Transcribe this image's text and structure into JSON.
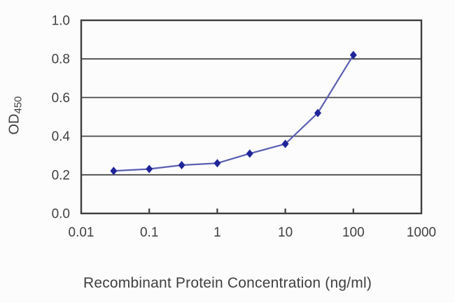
{
  "figure": {
    "background": "#fcfcfc"
  },
  "colors": {
    "axis": "#3e3e3e",
    "grid": "#4a4a4a",
    "text": "#3f3f3f"
  },
  "chart_data": {
    "type": "line",
    "title": "",
    "xlabel": "Recombinant Protein Concentration (ng/ml)",
    "ylabel": {
      "main": "OD",
      "sub": "450"
    },
    "x_scale": "log",
    "xlim": [
      0.01,
      1000
    ],
    "ylim": [
      0.0,
      1.0
    ],
    "x_ticks": [
      0.01,
      0.1,
      1,
      10,
      100,
      1000
    ],
    "x_tick_labels": [
      "0.01",
      "0.1",
      "1",
      "10",
      "100",
      "1000"
    ],
    "y_ticks": [
      0.0,
      0.2,
      0.4,
      0.6,
      0.8,
      1.0
    ],
    "y_tick_labels": [
      "0.0",
      "0.2",
      "0.4",
      "0.6",
      "0.8",
      "1.0"
    ],
    "grid": "horizontal",
    "series": [
      {
        "x": [
          0.03,
          0.1,
          0.3,
          1,
          3,
          10,
          30,
          100
        ],
        "y": [
          0.22,
          0.23,
          0.25,
          0.26,
          0.31,
          0.36,
          0.52,
          0.82
        ],
        "marker": "diamond",
        "marker_color": "#20249a",
        "line_color": "#5a5fb2"
      }
    ]
  }
}
